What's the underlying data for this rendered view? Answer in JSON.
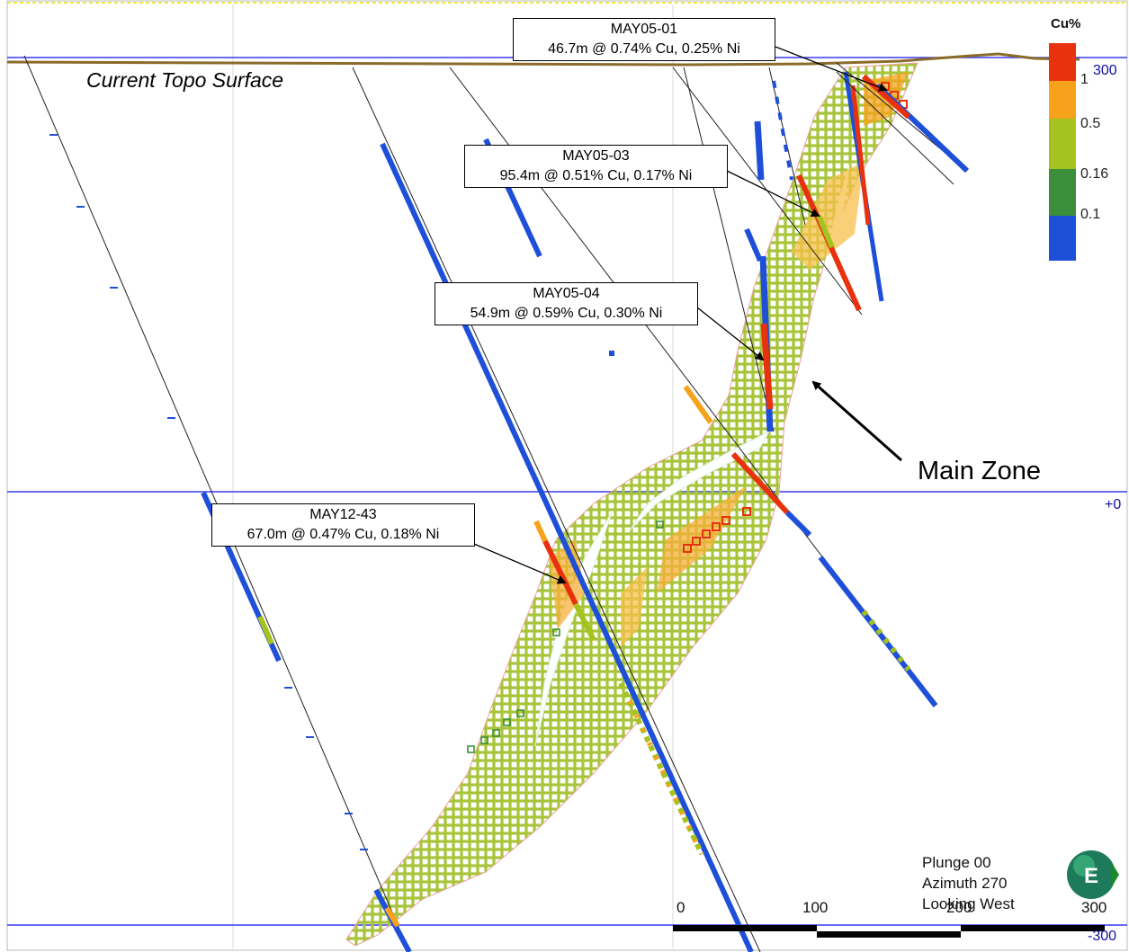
{
  "section": {
    "topo_label": "Current Topo Surface",
    "main_zone_label": "Main Zone",
    "elevations": {
      "top": "300",
      "mid": "+0",
      "bottom": "-300"
    },
    "colors": {
      "elevation_line": "#3a3af0",
      "topo_surface": "#8b6b2a",
      "envelope_fill": "#a8c43a",
      "grade_high": "#e8320e",
      "grade_mid": "#f7a21b",
      "grade_low": "#a6c21e",
      "grade_trace": "#3b8f3a",
      "grade_background": "#1e4fd8"
    }
  },
  "callouts": [
    {
      "hole": "MAY05-01",
      "interval": "46.7m @ 0.74% Cu, 0.25% Ni"
    },
    {
      "hole": "MAY05-03",
      "interval": "95.4m @ 0.51% Cu, 0.17% Ni"
    },
    {
      "hole": "MAY05-04",
      "interval": "54.9m @ 0.59% Cu, 0.30% Ni"
    },
    {
      "hole": "MAY12-43",
      "interval": "67.0m @ 0.47% Cu, 0.18% Ni"
    }
  ],
  "legend": {
    "title": "Cu%",
    "ticks": [
      "1",
      "0.5",
      "0.16",
      "0.1"
    ],
    "colors": [
      "#e8320e",
      "#f7a21b",
      "#a6c21e",
      "#3b8f3a",
      "#1e4fd8"
    ]
  },
  "view": {
    "plunge": "Plunge 00",
    "azimuth": "Azimuth 270",
    "looking": "Looking West",
    "compass_letter": "E"
  },
  "scale_bar": {
    "labels": [
      "0",
      "100",
      "200",
      "300"
    ]
  }
}
